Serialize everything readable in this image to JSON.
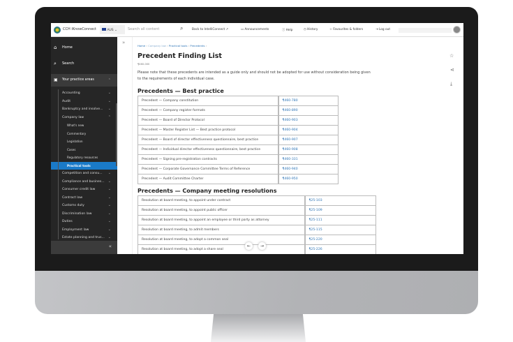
{
  "topbar": {
    "brand": "CCH iKnowConnect",
    "region": "AUS",
    "search_placeholder": "Search all content",
    "back": "Back to IntelliConnect",
    "announcements": "Announcements",
    "help": "Help",
    "history": "History",
    "favourites": "Favourites & folders",
    "logout": "Log out"
  },
  "sidebar": {
    "home": "Home",
    "search": "Search",
    "practice": "Your practice areas",
    "items": [
      {
        "label": "Accounting"
      },
      {
        "label": "Audit"
      },
      {
        "label": "Bankruptcy and insolve..."
      },
      {
        "label": "Company law"
      }
    ],
    "sub": [
      {
        "label": "What's new"
      },
      {
        "label": "Commentary"
      },
      {
        "label": "Legislation"
      },
      {
        "label": "Cases"
      },
      {
        "label": "Regulatory resources"
      },
      {
        "label": "Practical tools"
      }
    ],
    "more": [
      {
        "label": "Competition and consu..."
      },
      {
        "label": "Compliance and busines..."
      },
      {
        "label": "Consumer credit law"
      },
      {
        "label": "Contract law"
      },
      {
        "label": "Customs duty"
      },
      {
        "label": "Discrimination law"
      },
      {
        "label": "Duties"
      },
      {
        "label": "Employment law"
      },
      {
        "label": "Estate planning and trus..."
      }
    ],
    "accent": "#1a7ac8"
  },
  "breadcrumb": [
    "Home",
    "Company law",
    "Practical tools",
    "Precedents"
  ],
  "page": {
    "title": "Precedent Finding List",
    "ref": "¶460-000",
    "note": "Please note that these precedents are intended as a guide only and should not be adopted for use without consideration being given to the requirements of each individual case."
  },
  "section1": {
    "title": "Precedents — Best practice",
    "rows": [
      [
        "Precedent — Company constitution",
        "¶460-780"
      ],
      [
        "Precedent — Company register formats",
        "¶460-890"
      ],
      [
        "Precedent — Board of Director Protocol",
        "¶460-903"
      ],
      [
        "Precedent — Master Register List — Best practice protocol",
        "¶460-904"
      ],
      [
        "Precedent — Board of director effectiveness questionnaire, best practice",
        "¶460-907"
      ],
      [
        "Precedent — Individual director effectiveness questionnaire, best practice",
        "¶460-908"
      ],
      [
        "Precedent — Signing pre-registration contracts",
        "¶460-331"
      ],
      [
        "Precedent — Corporate Governance Committee Terms of Reference",
        "¶460-940"
      ],
      [
        "Precedent — Audit Committee Charter",
        "¶460-950"
      ]
    ]
  },
  "section2": {
    "title": "Precedents — Company meeting resolutions",
    "rows": [
      [
        "Resolution at board meeting, to appoint under contract",
        "¶25-103"
      ],
      [
        "Resolution at board meeting, to appoint public officer",
        "¶25-109"
      ],
      [
        "Resolution at board meeting, to appoint an employee or third party as attorney",
        "¶25-111"
      ],
      [
        "Resolution at board meeting, to admit members",
        "¶25-115"
      ],
      [
        "Resolution at board meeting, to adopt a common seal",
        "¶25-220"
      ],
      [
        "Resolution at board meeting, to adopt a share seal",
        "¶25-226"
      ]
    ]
  }
}
